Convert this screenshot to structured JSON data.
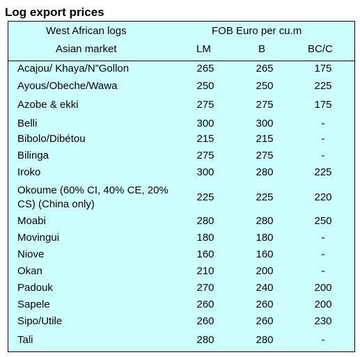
{
  "title": "Log export prices",
  "header": {
    "col1_line1": "West African logs",
    "col1_line2": "Asian market",
    "group": "FOB Euro per cu.m",
    "lm": "LM",
    "b": "B",
    "bcc": "BC/C"
  },
  "rows": [
    {
      "name": "Acajou/ Khaya/N”Gollon",
      "lm": "265",
      "b": "265",
      "bcc": "175"
    },
    {
      "name": "Ayous/Obeche/Wawa",
      "lm": "250",
      "b": "250",
      "bcc": "225"
    },
    {
      "name": "Azobe & ekki",
      "lm": "275",
      "b": "275",
      "bcc": "175"
    },
    {
      "name": "Belli",
      "lm": "300",
      "b": "300",
      "bcc": "-"
    },
    {
      "name": "Bibolo/Dibétou",
      "lm": "215",
      "b": "215",
      "bcc": "-"
    },
    {
      "name": "Bilinga",
      "lm": "275",
      "b": "275",
      "bcc": "-"
    },
    {
      "name": "Iroko",
      "lm": "300",
      "b": "280",
      "bcc": "225"
    },
    {
      "name": "Okoume (60% CI, 40% CE, 20% CS) (China only)",
      "lm": "225",
      "b": "225",
      "bcc": "220"
    },
    {
      "name": "Moabi",
      "lm": "280",
      "b": "280",
      "bcc": "250"
    },
    {
      "name": "Movingui",
      "lm": "180",
      "b": "180",
      "bcc": "-"
    },
    {
      "name": "Niove",
      "lm": "160",
      "b": "160",
      "bcc": "-"
    },
    {
      "name": "Okan",
      "lm": "210",
      "b": "200",
      "bcc": "-"
    },
    {
      "name": "Padouk",
      "lm": "270",
      "b": "240",
      "bcc": "200"
    },
    {
      "name": "Sapele",
      "lm": "260",
      "b": "260",
      "bcc": "200"
    },
    {
      "name": "Sipo/Utile",
      "lm": "260",
      "b": "260",
      "bcc": "230"
    },
    {
      "name": "Tali",
      "lm": "280",
      "b": "280",
      "bcc": "-"
    }
  ]
}
